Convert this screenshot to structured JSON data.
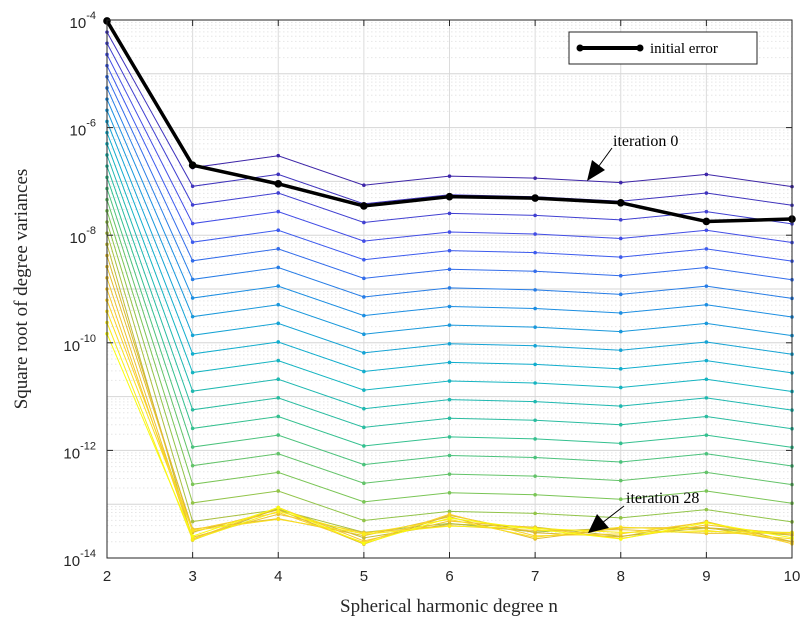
{
  "chart_data": {
    "type": "line",
    "xlabel": "Spherical harmonic degree n",
    "ylabel": "Square root of degree variances",
    "x": [
      2,
      3,
      4,
      5,
      6,
      7,
      8,
      9,
      10
    ],
    "xlim": [
      2,
      10
    ],
    "ylim": [
      1e-14,
      0.0001
    ],
    "yscale": "log",
    "x_ticks": [
      "2",
      "3",
      "4",
      "5",
      "6",
      "7",
      "8",
      "9",
      "10"
    ],
    "y_ticks": [
      {
        "base": "10",
        "exp": "-4",
        "value": 0.0001
      },
      {
        "base": "10",
        "exp": "-6",
        "value": 1e-06
      },
      {
        "base": "10",
        "exp": "-8",
        "value": 1e-08
      },
      {
        "base": "10",
        "exp": "-10",
        "value": 1e-10
      },
      {
        "base": "10",
        "exp": "-12",
        "value": 1e-12
      },
      {
        "base": "10",
        "exp": "-14",
        "value": 1e-14
      }
    ],
    "grid": true,
    "legend": {
      "placement": "top-right",
      "entries": [
        "initial error"
      ]
    },
    "highlight_series": {
      "name": "initial error",
      "color": "#000000",
      "values": [
        9.6e-05,
        2e-07,
        9e-08,
        3.5e-08,
        5.2e-08,
        4.9e-08,
        4e-08,
        1.8e-08,
        2e-08
      ]
    },
    "iterations": {
      "count": 29,
      "first": 0,
      "last": 28,
      "first_values": [
        9.6e-05,
        1.8e-07,
        3e-07,
        8.5e-08,
        1.25e-07,
        1.15e-07,
        9.5e-08,
        1.35e-07,
        8e-08
      ],
      "colormap": [
        "#3e26a8",
        "#4353f0",
        "#1c8ee2",
        "#10b2c9",
        "#34c08f",
        "#86c64d",
        "#d9b82e",
        "#f9ca2e",
        "#f9fb0e"
      ]
    },
    "annotations": [
      "iteration 0",
      "iteration 28"
    ]
  }
}
